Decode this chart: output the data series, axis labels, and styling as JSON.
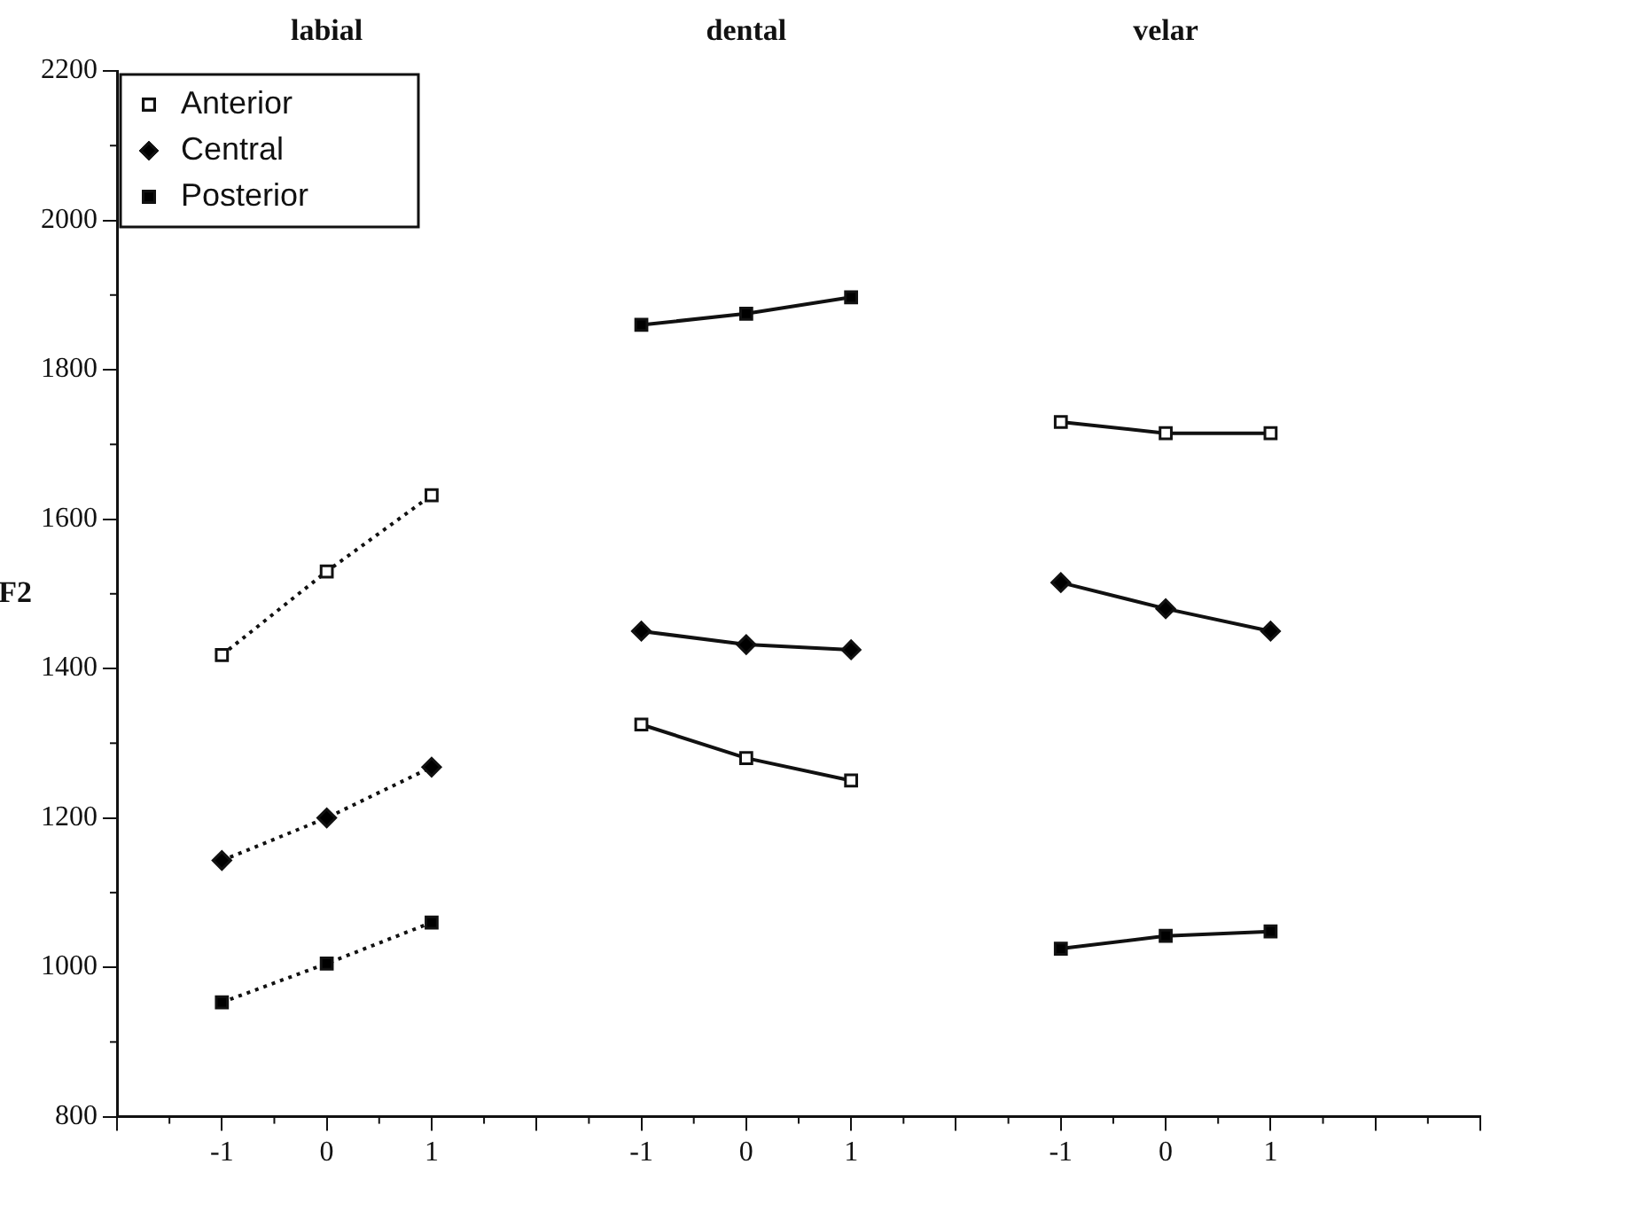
{
  "chart_data": {
    "type": "line",
    "ylabel": "F2",
    "categories": [
      null,
      "-1",
      "0",
      "1",
      null,
      "-1",
      "0",
      "1",
      null,
      "-1",
      "0",
      "1",
      null,
      null
    ],
    "annotations": [
      "labial",
      "dental",
      "velar"
    ],
    "ylim": [
      800,
      2200
    ],
    "yticks": [
      800,
      1000,
      1200,
      1400,
      1600,
      1800,
      2000,
      2200
    ],
    "grid": false,
    "legend": "top left",
    "line_style": "solid",
    "series": [
      {
        "name": "Anterior",
        "color": "#ffffff",
        "marker": "square",
        "line_style": "dotted",
        "values": [
          null,
          1418,
          1530,
          1632,
          null,
          null,
          null,
          null,
          null,
          null,
          null,
          null,
          null,
          null
        ]
      },
      {
        "name": "Central",
        "color": "#000000",
        "marker": "diamond",
        "line_style": "dotted",
        "values": [
          null,
          1143,
          1200,
          1268,
          null,
          null,
          null,
          null,
          null,
          null,
          null,
          null,
          null,
          null
        ]
      },
      {
        "name": "Posterior",
        "color": "#000000",
        "marker": "square",
        "line_style": "dotted",
        "values": [
          null,
          953,
          1005,
          1060,
          null,
          null,
          null,
          null,
          null,
          null,
          null,
          null,
          null,
          null
        ]
      },
      {
        "color": "#ffffff",
        "marker": "square",
        "values": [
          null,
          null,
          null,
          null,
          null,
          1325,
          1280,
          1250,
          null,
          null,
          null,
          null,
          null,
          null
        ]
      },
      {
        "color": "#000000",
        "marker": "diamond",
        "values": [
          null,
          null,
          null,
          null,
          null,
          1450,
          1432,
          1425,
          null,
          null,
          null,
          null,
          null,
          null
        ]
      },
      {
        "color": "#000000",
        "marker": "square",
        "values": [
          null,
          null,
          null,
          null,
          null,
          1860,
          1875,
          1897,
          null,
          null,
          null,
          null,
          null,
          null
        ]
      },
      {
        "color": "#ffffff",
        "marker": "square",
        "values": [
          null,
          null,
          null,
          null,
          null,
          null,
          null,
          null,
          null,
          1730,
          1715,
          1715,
          null,
          null
        ]
      },
      {
        "color": "#000000",
        "marker": "diamond",
        "values": [
          null,
          null,
          null,
          null,
          null,
          null,
          null,
          null,
          null,
          1515,
          1480,
          1450,
          null,
          null
        ]
      },
      {
        "color": "#000000",
        "marker": "square",
        "values": [
          null,
          null,
          null,
          null,
          null,
          null,
          null,
          null,
          null,
          1025,
          1042,
          1048,
          null,
          null
        ]
      }
    ]
  }
}
